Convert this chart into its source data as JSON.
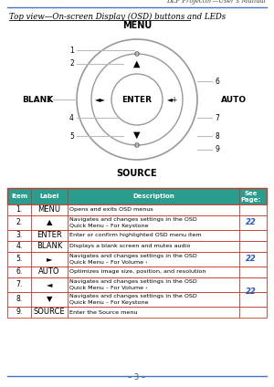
{
  "header_right": "DLP Projector—User’s Manual",
  "title": "Top view—On-screen Display (OSD) buttons and LEDs",
  "label_menu": "MENU",
  "label_source": "SOURCE",
  "label_blank": "BLANK",
  "label_auto": "AUTO",
  "label_enter": "ENTER",
  "bg_color": "#ffffff",
  "header_line_color": "#4472C4",
  "table_header_bg": "#2a9d8f",
  "table_header_text": "#ffffff",
  "table_border_color": "#c0392b",
  "page_num_color": "#2255cc",
  "circle_color": "#999999",
  "line_color": "#bbbbbb",
  "rows": [
    {
      "item": "1.",
      "label": "MENU",
      "description": "Opens and exits OSD menus",
      "page": "",
      "page_rows": [
        1,
        2,
        3
      ]
    },
    {
      "item": "2.",
      "label": "▲",
      "description": "Navigates and changes settings in the OSD\nQuick Menu – For Keystone",
      "page": "22",
      "page_rows": [
        1,
        2,
        3
      ]
    },
    {
      "item": "3.",
      "label": "ENTER",
      "description": "Enter or confirm highlighted OSD menu item",
      "page": "",
      "page_rows": [
        1,
        2,
        3
      ]
    },
    {
      "item": "4.",
      "label": "BLANK",
      "description": "Displays a blank screen and mutes audio",
      "page": "",
      "page_rows": []
    },
    {
      "item": "5.",
      "label": "►",
      "description": "Navigates and changes settings in the OSD\nQuick Menu – For Volume ‹",
      "page": "22",
      "page_rows": [
        5
      ]
    },
    {
      "item": "6.",
      "label": "AUTO",
      "description": "Optimizes image size, position, and resolution",
      "page": "",
      "page_rows": []
    },
    {
      "item": "7.",
      "label": "◄",
      "description": "Navigates and changes settings in the OSD\nQuick Menu – For Volume ›",
      "page": "22",
      "page_rows": [
        7,
        8
      ]
    },
    {
      "item": "8.",
      "label": "▼",
      "description": "Navigates and changes settings in the OSD\nQuick Menu – For Keystone",
      "page": "",
      "page_rows": [
        7,
        8
      ]
    },
    {
      "item": "9.",
      "label": "SOURCE",
      "description": "Enter the Source menu",
      "page": "",
      "page_rows": []
    }
  ],
  "page_spans": [
    {
      "rows": [
        1,
        2,
        3
      ],
      "page": "22"
    },
    {
      "rows": [
        5
      ],
      "page": "22"
    },
    {
      "rows": [
        7,
        8
      ],
      "page": "22"
    }
  ],
  "footer_text": "– 3 –"
}
